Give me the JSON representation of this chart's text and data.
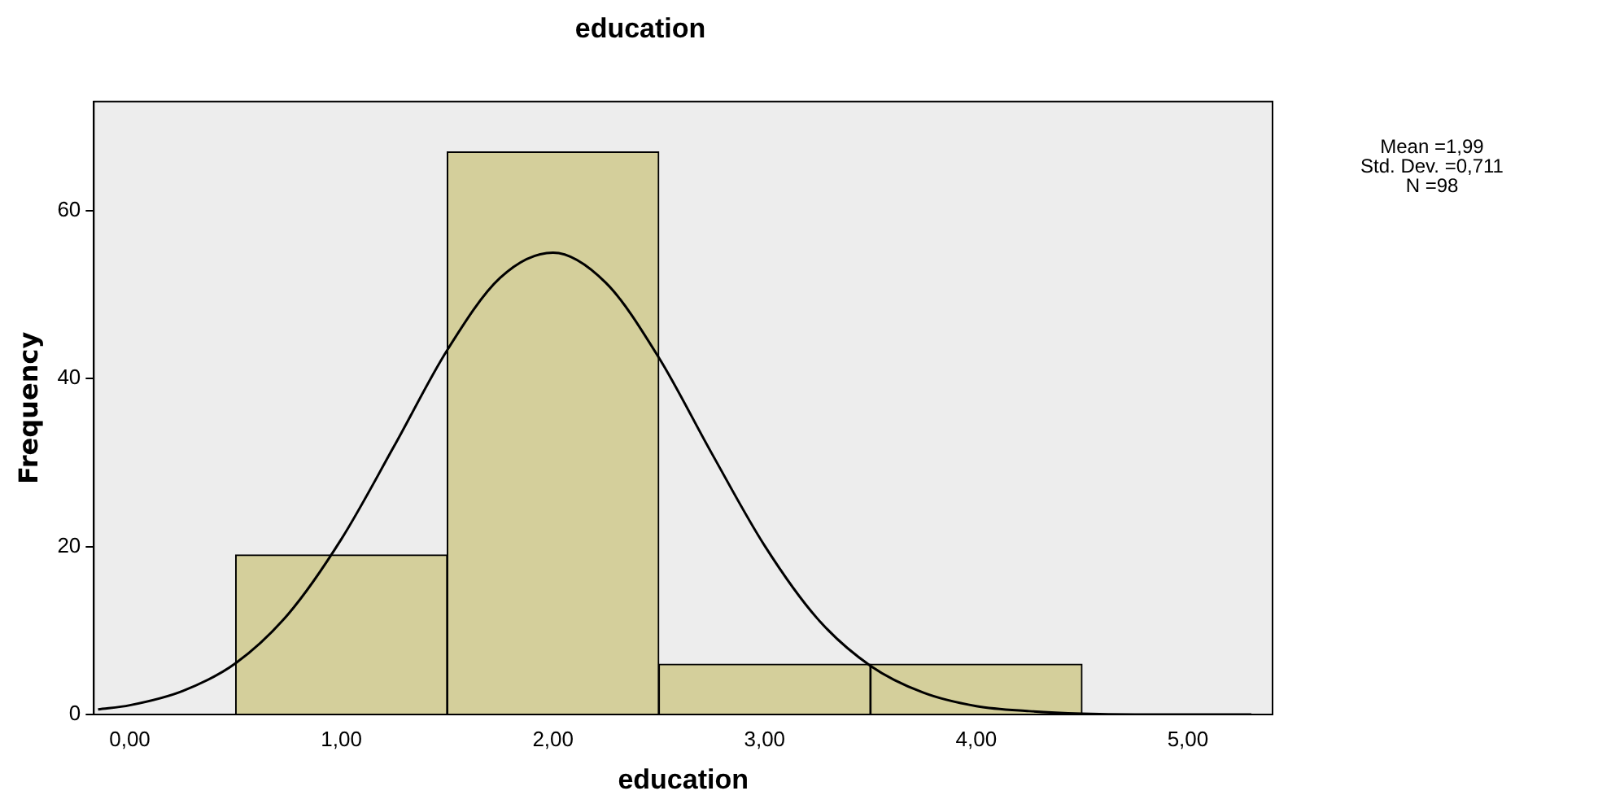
{
  "chart_data": {
    "type": "histogram",
    "title": "education",
    "xlabel": "education",
    "ylabel": "Frequency",
    "bins": [
      0.5,
      1.5,
      2.5,
      3.5,
      4.5
    ],
    "values": [
      19,
      67,
      6,
      6
    ],
    "color": "#d4cf9b",
    "series": [
      {
        "type": "line",
        "color": "#000000",
        "x": [
          -0.15,
          0,
          0.25,
          0.5,
          0.75,
          1,
          1.25,
          1.5,
          1.75,
          2,
          2.25,
          2.5,
          2.75,
          3,
          3.25,
          3.5,
          3.75,
          4,
          4.25,
          4.5,
          4.75,
          5,
          5.3
        ],
        "values": [
          0.6,
          1.1,
          2.8,
          6.1,
          12,
          20.9,
          32,
          43.4,
          52,
          55,
          51.4,
          42.5,
          31.1,
          20.1,
          11.4,
          5.8,
          2.6,
          1,
          0.4,
          0.1,
          0,
          0,
          0
        ]
      }
    ],
    "xlim": [
      -0.17,
      5.4
    ],
    "xticks": [
      {
        "value": 0,
        "label": "0,00"
      },
      {
        "value": 1,
        "label": "1,00"
      },
      {
        "value": 2,
        "label": "2,00"
      },
      {
        "value": 3,
        "label": "3,00"
      },
      {
        "value": 4,
        "label": "4,00"
      },
      {
        "value": 5,
        "label": "5,00"
      }
    ],
    "ylim": [
      0,
      73
    ],
    "yticks": [
      0,
      20,
      40,
      60
    ],
    "grid": false,
    "legend": false,
    "marker": "none",
    "line_style": "solid",
    "annotations": [
      "Mean =1,99",
      "Std. Dev. =0,711",
      "N =98"
    ]
  }
}
